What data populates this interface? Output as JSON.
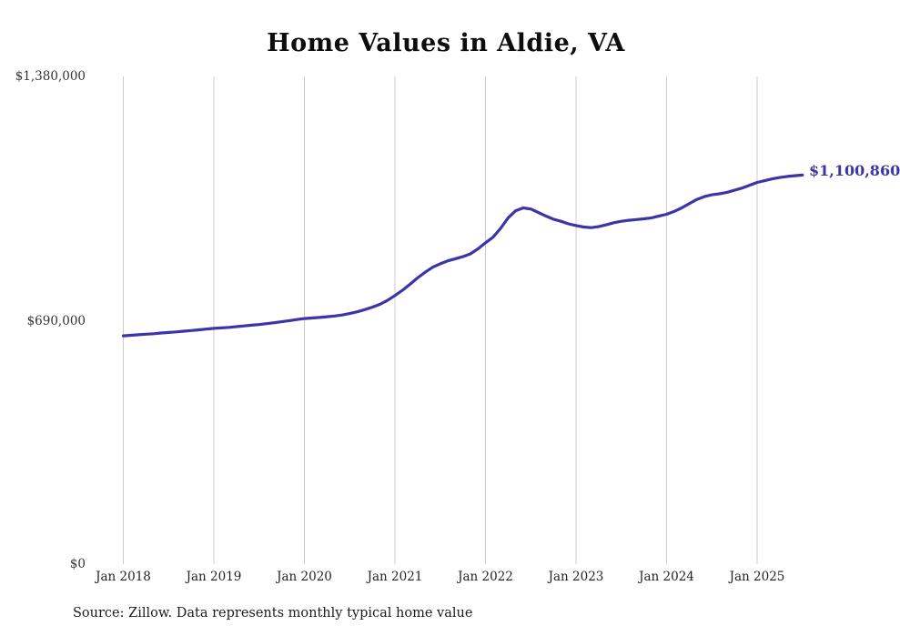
{
  "title": "Home Values in Aldie, VA",
  "source": "Source: Zillow. Data represents monthly typical home value",
  "end_value_label": "$1,100,860",
  "colors": {
    "line": "#3b36a8",
    "grid": "#cccccc",
    "title_text": "#0d0d0d",
    "axis_text": "#333333"
  },
  "y_axis": {
    "labels": [
      "$1,380,000",
      "$690,000",
      "$0"
    ]
  },
  "x_axis": {
    "labels": [
      "Jan 2018",
      "Jan 2019",
      "Jan 2020",
      "Jan 2021",
      "Jan 2022",
      "Jan 2023",
      "Jan 2024",
      "Jan 2025"
    ]
  },
  "chart_data": {
    "type": "line",
    "title": "Home Values in Aldie, VA",
    "xlabel": "",
    "ylabel": "",
    "ylim": [
      0,
      1380000
    ],
    "grid": "vertical-only",
    "x_start": "2018-01",
    "x_end": "2025-07",
    "x_tick_labels": [
      "Jan 2018",
      "Jan 2019",
      "Jan 2020",
      "Jan 2021",
      "Jan 2022",
      "Jan 2023",
      "Jan 2024",
      "Jan 2025"
    ],
    "y_tick_labels": [
      "$0",
      "$690,000",
      "$1,380,000"
    ],
    "end_value": 1100860,
    "end_value_label": "$1,100,860",
    "source": "Source: Zillow. Data represents monthly typical home value",
    "series": [
      {
        "name": "Monthly typical home value",
        "color": "#3b36a8",
        "values": [
          646000,
          647500,
          649000,
          650500,
          652000,
          654000,
          655500,
          657000,
          659000,
          661000,
          663000,
          665000,
          667000,
          668500,
          670000,
          672000,
          674000,
          676000,
          678000,
          680500,
          683000,
          686000,
          689000,
          692000,
          695000,
          696500,
          698000,
          700000,
          702000,
          705000,
          709000,
          714000,
          720000,
          727000,
          735000,
          746000,
          760000,
          775000,
          792000,
          810000,
          826000,
          840000,
          850000,
          858000,
          864000,
          870000,
          878000,
          892000,
          909000,
          925000,
          950000,
          980000,
          1000000,
          1008000,
          1005000,
          995000,
          985000,
          976000,
          970000,
          963000,
          958000,
          954000,
          952000,
          955000,
          960000,
          966000,
          970000,
          973000,
          975000,
          977000,
          980000,
          985000,
          990000,
          998000,
          1008000,
          1020000,
          1032000,
          1040000,
          1045000,
          1048000,
          1052000,
          1058000,
          1064000,
          1072000,
          1080000,
          1085000,
          1090000,
          1094000,
          1097000,
          1099000,
          1100860
        ]
      }
    ]
  }
}
